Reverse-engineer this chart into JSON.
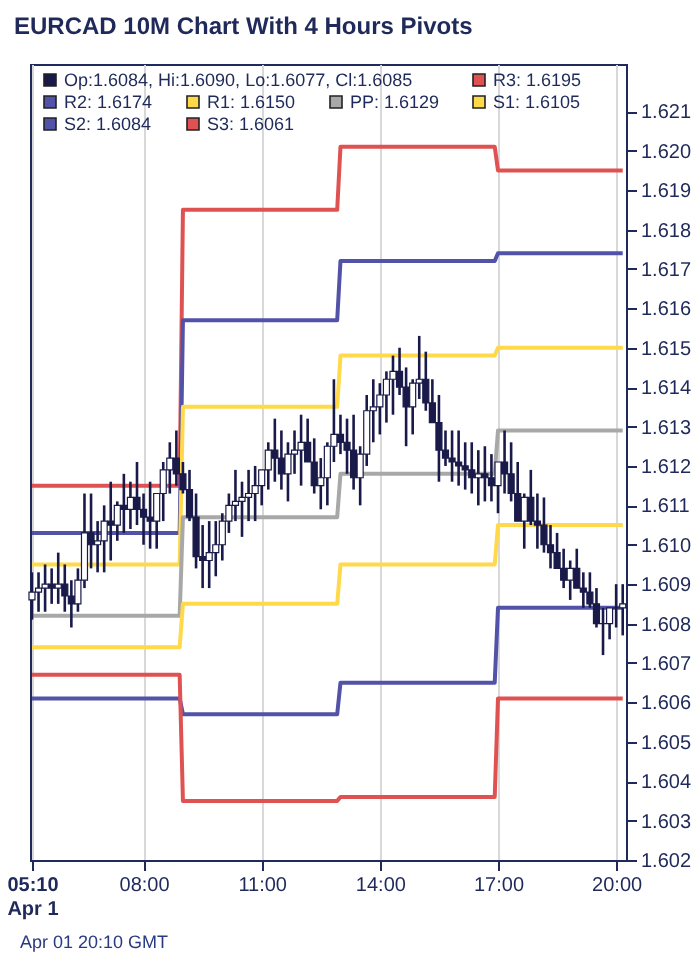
{
  "chart_data": {
    "type": "candlestick",
    "title": "EURCAD 10M Chart With 4 Hours Pivots",
    "annotations": [
      "Apr 01 20:10 GMT"
    ],
    "x": [
      "--04-01T05:10",
      "--04-01T05:20",
      "--04-01T05:30",
      "--04-01T05:40",
      "--04-01T05:50",
      "--04-01T06:00",
      "--04-01T06:10",
      "--04-01T06:20",
      "--04-01T06:30",
      "--04-01T06:40",
      "--04-01T06:50",
      "--04-01T07:00",
      "--04-01T07:10",
      "--04-01T07:20",
      "--04-01T07:30",
      "--04-01T07:40",
      "--04-01T07:50",
      "--04-01T08:00",
      "--04-01T08:10",
      "--04-01T08:20",
      "--04-01T08:30",
      "--04-01T08:40",
      "--04-01T08:50",
      "--04-01T09:00",
      "--04-01T09:10",
      "--04-01T09:20",
      "--04-01T09:30",
      "--04-01T09:40",
      "--04-01T09:50",
      "--04-01T10:00",
      "--04-01T10:10",
      "--04-01T10:20",
      "--04-01T10:30",
      "--04-01T10:40",
      "--04-01T10:50",
      "--04-01T11:00",
      "--04-01T11:10",
      "--04-01T11:20",
      "--04-01T11:30",
      "--04-01T11:40",
      "--04-01T11:50",
      "--04-01T12:00",
      "--04-01T12:10",
      "--04-01T12:20",
      "--04-01T12:30",
      "--04-01T12:40",
      "--04-01T12:50",
      "--04-01T13:00",
      "--04-01T13:10",
      "--04-01T13:20",
      "--04-01T13:30",
      "--04-01T13:40",
      "--04-01T13:50",
      "--04-01T14:00",
      "--04-01T14:10",
      "--04-01T14:20",
      "--04-01T14:30",
      "--04-01T14:40",
      "--04-01T14:50",
      "--04-01T15:00",
      "--04-01T15:10",
      "--04-01T15:20",
      "--04-01T15:30",
      "--04-01T15:40",
      "--04-01T15:50",
      "--04-01T16:00",
      "--04-01T16:10",
      "--04-01T16:20",
      "--04-01T16:30",
      "--04-01T16:40",
      "--04-01T16:50",
      "--04-01T17:00",
      "--04-01T17:10",
      "--04-01T17:20",
      "--04-01T17:30",
      "--04-01T17:40",
      "--04-01T17:50",
      "--04-01T18:00",
      "--04-01T18:10",
      "--04-01T18:20",
      "--04-01T18:30",
      "--04-01T18:40",
      "--04-01T18:50",
      "--04-01T19:00",
      "--04-01T19:10",
      "--04-01T19:20",
      "--04-01T19:30",
      "--04-01T19:40",
      "--04-01T19:50",
      "--04-01T20:00",
      "--04-01T20:10"
    ],
    "xlim": [
      "--04-01T05:07",
      "--04-01T20:15"
    ],
    "xticks": [
      {
        "value": "--04-01T05:10",
        "label": "05:10\nApr 1"
      },
      {
        "value": "--04-01T08:00",
        "label": "08:00"
      },
      {
        "value": "--04-01T11:00",
        "label": "11:00"
      },
      {
        "value": "--04-01T14:00",
        "label": "14:00"
      },
      {
        "value": "--04-01T17:00",
        "label": "17:00"
      },
      {
        "value": "--04-01T20:00",
        "label": "20:00"
      }
    ],
    "ylim": [
      1.602,
      1.6222
    ],
    "yticks": [
      1.602,
      1.603,
      1.604,
      1.605,
      1.606,
      1.607,
      1.608,
      1.609,
      {
        "value": 1.61,
        "label": "1.610"
      },
      1.611,
      1.612,
      1.613,
      1.614,
      1.615,
      1.616,
      1.617,
      1.618,
      1.619,
      {
        "value": 1.62,
        "label": "1.620"
      },
      1.621
    ],
    "grid": "x",
    "legend": "top left",
    "series": [
      {
        "name": "Op:1.6084, Hi:1.6090, Lo:1.6077, Cl:1.6085",
        "type": "candlestick",
        "color": "#1a1a4a",
        "ohlc": [
          [
            1.6086,
            1.6093,
            1.6081,
            1.6088
          ],
          [
            1.6088,
            1.6093,
            1.6083,
            1.6089
          ],
          [
            1.6089,
            1.6095,
            1.6083,
            1.609
          ],
          [
            1.609,
            1.6094,
            1.6085,
            1.6089
          ],
          [
            1.6089,
            1.6098,
            1.6085,
            1.609
          ],
          [
            1.609,
            1.6095,
            1.6083,
            1.6087
          ],
          [
            1.6087,
            1.6091,
            1.6079,
            1.6085
          ],
          [
            1.6085,
            1.6094,
            1.6083,
            1.6091
          ],
          [
            1.6091,
            1.6113,
            1.6089,
            1.6103
          ],
          [
            1.6103,
            1.6113,
            1.6094,
            1.61
          ],
          [
            1.61,
            1.6106,
            1.6093,
            1.6101
          ],
          [
            1.6101,
            1.611,
            1.6093,
            1.6106
          ],
          [
            1.6106,
            1.6116,
            1.6096,
            1.6105
          ],
          [
            1.6105,
            1.6111,
            1.6101,
            1.611
          ],
          [
            1.611,
            1.6118,
            1.6103,
            1.6109
          ],
          [
            1.6109,
            1.6116,
            1.6104,
            1.6112
          ],
          [
            1.6112,
            1.6121,
            1.6105,
            1.6109
          ],
          [
            1.6109,
            1.6113,
            1.61,
            1.6107
          ],
          [
            1.6107,
            1.6116,
            1.6099,
            1.6106
          ],
          [
            1.6106,
            1.6113,
            1.6099,
            1.6113
          ],
          [
            1.6113,
            1.6121,
            1.6106,
            1.6119
          ],
          [
            1.6119,
            1.6126,
            1.6113,
            1.6122
          ],
          [
            1.6122,
            1.6129,
            1.6115,
            1.6118
          ],
          [
            1.6118,
            1.6121,
            1.6113,
            1.6114
          ],
          [
            1.6114,
            1.6119,
            1.6106,
            1.6107
          ],
          [
            1.6107,
            1.6113,
            1.6094,
            1.6097
          ],
          [
            1.6097,
            1.6105,
            1.6089,
            1.6096
          ],
          [
            1.6096,
            1.6106,
            1.6089,
            1.6098
          ],
          [
            1.6098,
            1.6106,
            1.6092,
            1.61
          ],
          [
            1.61,
            1.6108,
            1.6096,
            1.6106
          ],
          [
            1.6106,
            1.6113,
            1.6103,
            1.611
          ],
          [
            1.611,
            1.6119,
            1.6106,
            1.6111
          ],
          [
            1.6111,
            1.6116,
            1.6102,
            1.6112
          ],
          [
            1.6112,
            1.6119,
            1.6106,
            1.6113
          ],
          [
            1.6113,
            1.612,
            1.6106,
            1.6115
          ],
          [
            1.6115,
            1.6119,
            1.611,
            1.6119
          ],
          [
            1.6119,
            1.6126,
            1.6114,
            1.6124
          ],
          [
            1.6124,
            1.6132,
            1.6116,
            1.6122
          ],
          [
            1.6122,
            1.6129,
            1.6114,
            1.6118
          ],
          [
            1.6118,
            1.6126,
            1.6111,
            1.6123
          ],
          [
            1.6123,
            1.6129,
            1.6118,
            1.6124
          ],
          [
            1.6124,
            1.6133,
            1.6115,
            1.6126
          ],
          [
            1.6126,
            1.6132,
            1.6121,
            1.6121
          ],
          [
            1.6121,
            1.6127,
            1.6113,
            1.6115
          ],
          [
            1.6115,
            1.6122,
            1.6109,
            1.6117
          ],
          [
            1.6117,
            1.6126,
            1.611,
            1.6125
          ],
          [
            1.6125,
            1.6142,
            1.6121,
            1.6128
          ],
          [
            1.6128,
            1.6133,
            1.6123,
            1.6126
          ],
          [
            1.6126,
            1.6132,
            1.6118,
            1.6124
          ],
          [
            1.6124,
            1.6133,
            1.6114,
            1.6117
          ],
          [
            1.6117,
            1.6125,
            1.611,
            1.6123
          ],
          [
            1.6123,
            1.6138,
            1.612,
            1.6134
          ],
          [
            1.6134,
            1.6142,
            1.6126,
            1.6135
          ],
          [
            1.6135,
            1.6141,
            1.6128,
            1.6138
          ],
          [
            1.6138,
            1.6144,
            1.6131,
            1.6142
          ],
          [
            1.6142,
            1.6148,
            1.6133,
            1.6144
          ],
          [
            1.6144,
            1.615,
            1.6138,
            1.614
          ],
          [
            1.614,
            1.6145,
            1.6125,
            1.6135
          ],
          [
            1.6135,
            1.6142,
            1.6128,
            1.6141
          ],
          [
            1.6141,
            1.6153,
            1.6137,
            1.6142
          ],
          [
            1.6142,
            1.6149,
            1.6134,
            1.6136
          ],
          [
            1.6136,
            1.6142,
            1.6131,
            1.6131
          ],
          [
            1.6131,
            1.6138,
            1.6116,
            1.6124
          ],
          [
            1.6124,
            1.6129,
            1.612,
            1.6122
          ],
          [
            1.6122,
            1.6129,
            1.6116,
            1.6121
          ],
          [
            1.6121,
            1.6129,
            1.6115,
            1.612
          ],
          [
            1.612,
            1.6126,
            1.6114,
            1.6119
          ],
          [
            1.6119,
            1.6126,
            1.6113,
            1.6117
          ],
          [
            1.6117,
            1.6124,
            1.611,
            1.6118
          ],
          [
            1.6118,
            1.6125,
            1.6111,
            1.6117
          ],
          [
            1.6117,
            1.6123,
            1.6111,
            1.6115
          ],
          [
            1.6115,
            1.6121,
            1.6108,
            1.6121
          ],
          [
            1.6121,
            1.6129,
            1.6113,
            1.6118
          ],
          [
            1.6118,
            1.6126,
            1.6111,
            1.6113
          ],
          [
            1.6113,
            1.6121,
            1.6106,
            1.6106
          ],
          [
            1.6106,
            1.6113,
            1.6099,
            1.6112
          ],
          [
            1.6112,
            1.6119,
            1.6105,
            1.6106
          ],
          [
            1.6106,
            1.6113,
            1.6099,
            1.6105
          ],
          [
            1.6105,
            1.6112,
            1.6098,
            1.61
          ],
          [
            1.61,
            1.6105,
            1.6094,
            1.6098
          ],
          [
            1.6098,
            1.6103,
            1.6094,
            1.6094
          ],
          [
            1.6094,
            1.6099,
            1.6089,
            1.6091
          ],
          [
            1.6091,
            1.6096,
            1.6086,
            1.6094
          ],
          [
            1.6094,
            1.6099,
            1.6089,
            1.6089
          ],
          [
            1.6089,
            1.6093,
            1.6084,
            1.6088
          ],
          [
            1.6088,
            1.6093,
            1.6084,
            1.6085
          ],
          [
            1.6085,
            1.6089,
            1.6079,
            1.608
          ],
          [
            1.608,
            1.6084,
            1.6072,
            1.608
          ],
          [
            1.608,
            1.6084,
            1.6076,
            1.6084
          ],
          [
            1.6084,
            1.609,
            1.6079,
            1.6084
          ],
          [
            1.6084,
            1.609,
            1.6077,
            1.6085
          ]
        ]
      },
      {
        "name": "R3: 1.6195",
        "type": "line",
        "color": "#e05252",
        "x": [
          "--04-01T05:10",
          "--04-01T08:55",
          "--04-01T09:00",
          "--04-01T12:55",
          "--04-01T13:00",
          "--04-01T16:55",
          "--04-01T17:00",
          "--04-01T20:10"
        ],
        "values": [
          1.6115,
          1.6115,
          1.6185,
          1.6185,
          1.6201,
          1.6201,
          1.6195,
          1.6195
        ]
      },
      {
        "name": "R2: 1.6174",
        "type": "line",
        "color": "#5252a8",
        "x": [
          "--04-01T05:10",
          "--04-01T08:55",
          "--04-01T09:00",
          "--04-01T12:55",
          "--04-01T13:00",
          "--04-01T16:55",
          "--04-01T17:00",
          "--04-01T20:10"
        ],
        "values": [
          1.6103,
          1.6103,
          1.6157,
          1.6157,
          1.6172,
          1.6172,
          1.6174,
          1.6174
        ]
      },
      {
        "name": "R1: 1.6150",
        "type": "line",
        "color": "#ffd94a",
        "x": [
          "--04-01T05:10",
          "--04-01T08:55",
          "--04-01T09:00",
          "--04-01T12:55",
          "--04-01T13:00",
          "--04-01T16:55",
          "--04-01T17:00",
          "--04-01T20:10"
        ],
        "values": [
          1.6095,
          1.6095,
          1.6135,
          1.6135,
          1.6148,
          1.6148,
          1.615,
          1.615
        ]
      },
      {
        "name": "PP: 1.6129",
        "type": "line",
        "color": "#a8a8a8",
        "x": [
          "--04-01T05:10",
          "--04-01T08:55",
          "--04-01T09:00",
          "--04-01T12:55",
          "--04-01T13:00",
          "--04-01T16:55",
          "--04-01T17:00",
          "--04-01T20:10"
        ],
        "values": [
          1.6082,
          1.6082,
          1.6107,
          1.6107,
          1.6118,
          1.6118,
          1.6129,
          1.6129
        ]
      },
      {
        "name": "S1: 1.6105",
        "type": "line",
        "color": "#ffd94a",
        "x": [
          "--04-01T05:10",
          "--04-01T08:55",
          "--04-01T09:00",
          "--04-01T12:55",
          "--04-01T13:00",
          "--04-01T16:55",
          "--04-01T17:00",
          "--04-01T20:10"
        ],
        "values": [
          1.6074,
          1.6074,
          1.6085,
          1.6085,
          1.6095,
          1.6095,
          1.6105,
          1.6105
        ]
      },
      {
        "name": "S2: 1.6084",
        "type": "line",
        "color": "#5252a8",
        "x": [
          "--04-01T05:10",
          "--04-01T08:55",
          "--04-01T09:00",
          "--04-01T12:55",
          "--04-01T13:00",
          "--04-01T16:55",
          "--04-01T17:00",
          "--04-01T20:10"
        ],
        "values": [
          1.6061,
          1.6061,
          1.6057,
          1.6057,
          1.6065,
          1.6065,
          1.6084,
          1.6084
        ]
      },
      {
        "name": "S3: 1.6061",
        "type": "line",
        "color": "#e05252",
        "x": [
          "--04-01T05:10",
          "--04-01T08:55",
          "--04-01T09:00",
          "--04-01T12:55",
          "--04-01T13:00",
          "--04-01T16:55",
          "--04-01T17:00",
          "--04-01T20:10"
        ],
        "values": [
          1.6067,
          1.6067,
          1.6035,
          1.6035,
          1.6036,
          1.6036,
          1.6061,
          1.6061
        ]
      }
    ]
  }
}
